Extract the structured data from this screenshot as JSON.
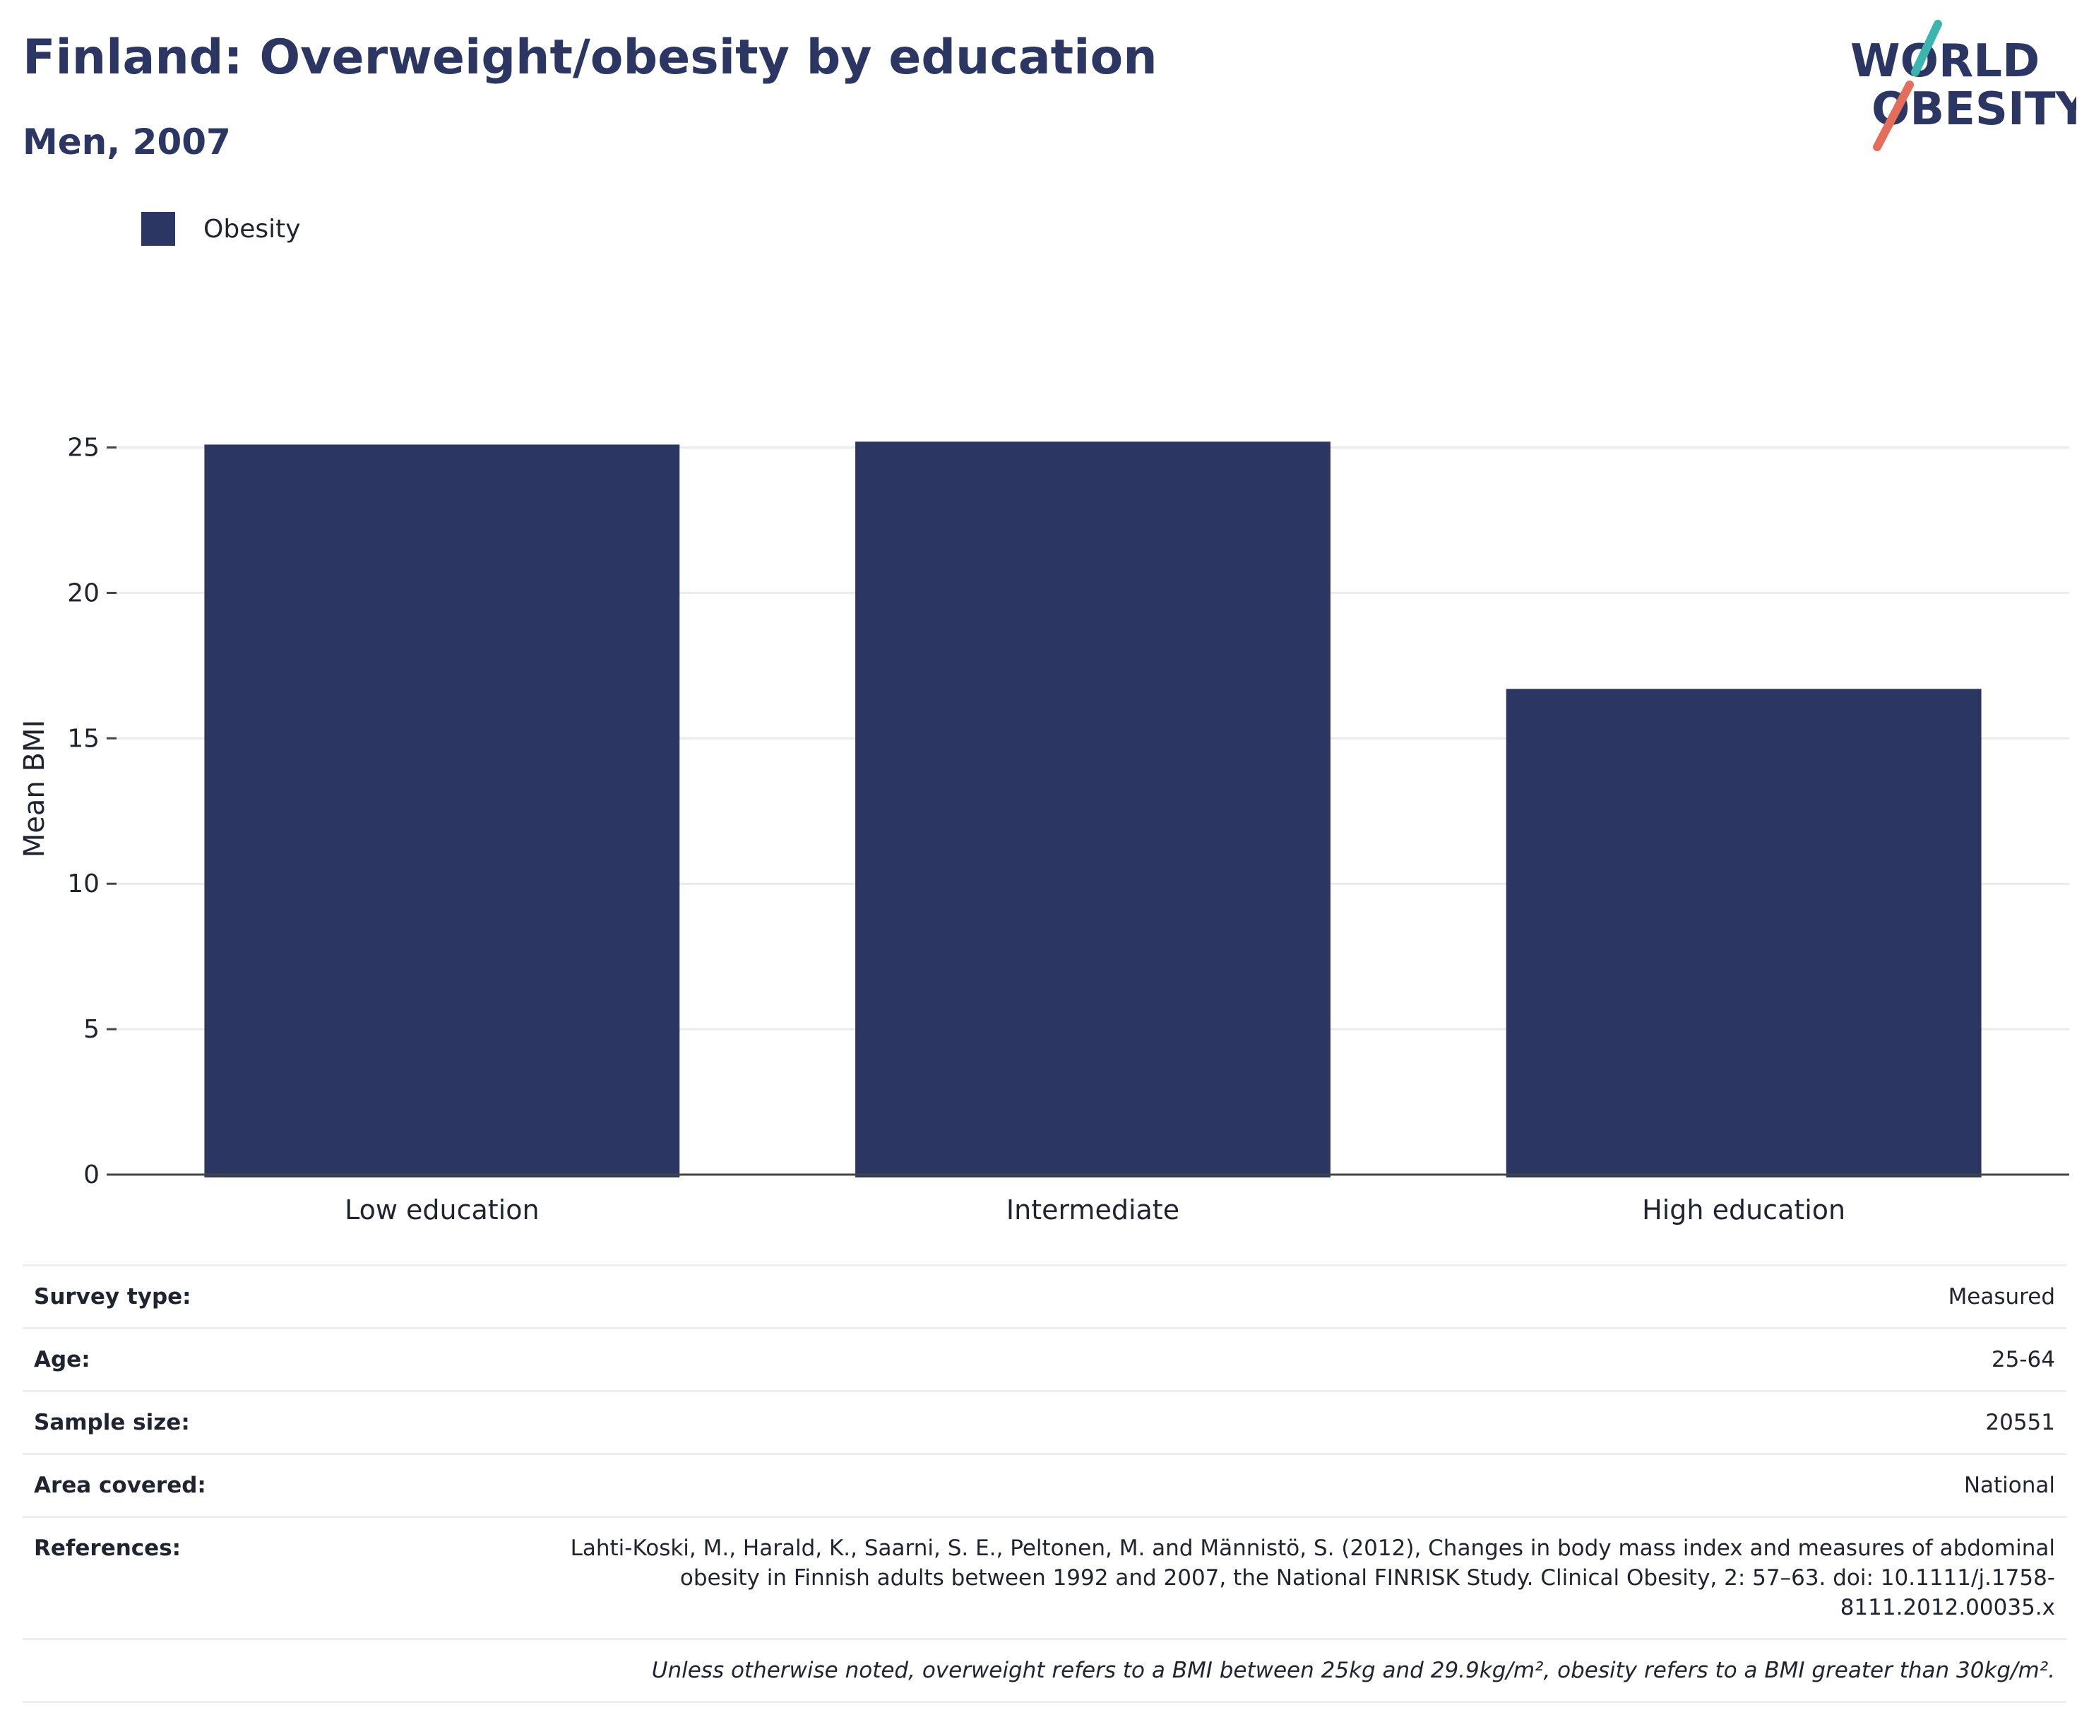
{
  "header": {
    "title": "Finland: Overweight/obesity by education",
    "subtitle": "Men, 2007"
  },
  "logo": {
    "line1": "WORLD",
    "line2": "OBESITY",
    "colors": {
      "text": "#2b3663",
      "slash_teal": "#3bb5b0",
      "slash_coral": "#e46d5b"
    }
  },
  "legend": {
    "label": "Obesity"
  },
  "chart_data": {
    "type": "bar",
    "categories": [
      "Low education",
      "Intermediate",
      "High education"
    ],
    "series": [
      {
        "name": "Obesity",
        "values": [
          25.1,
          25.2,
          16.7
        ],
        "color": "#2b3663"
      }
    ],
    "ylabel": "Mean BMI",
    "xlabel": "",
    "ylim": [
      0,
      28
    ],
    "yticks": [
      0,
      5,
      10,
      15,
      20,
      25
    ],
    "grid": true,
    "legend_position": "top-left"
  },
  "info": {
    "rows": [
      {
        "label": "Survey type:",
        "value": "Measured"
      },
      {
        "label": "Age:",
        "value": "25-64"
      },
      {
        "label": "Sample size:",
        "value": "20551"
      },
      {
        "label": "Area covered:",
        "value": "National"
      },
      {
        "label": "References:",
        "value": "Lahti-Koski, M., Harald, K., Saarni, S. E., Peltonen, M. and Männistö, S. (2012), Changes in body mass index and measures of abdominal obesity in Finnish adults between 1992 and 2007, the National FINRISK Study. Clinical Obesity, 2: 57–63. doi: 10.1111/j.1758-8111.2012.00035.x"
      }
    ],
    "footnote": "Unless otherwise noted, overweight refers to a BMI between 25kg and 29.9kg/m², obesity refers to a BMI greater than 30kg/m²."
  }
}
